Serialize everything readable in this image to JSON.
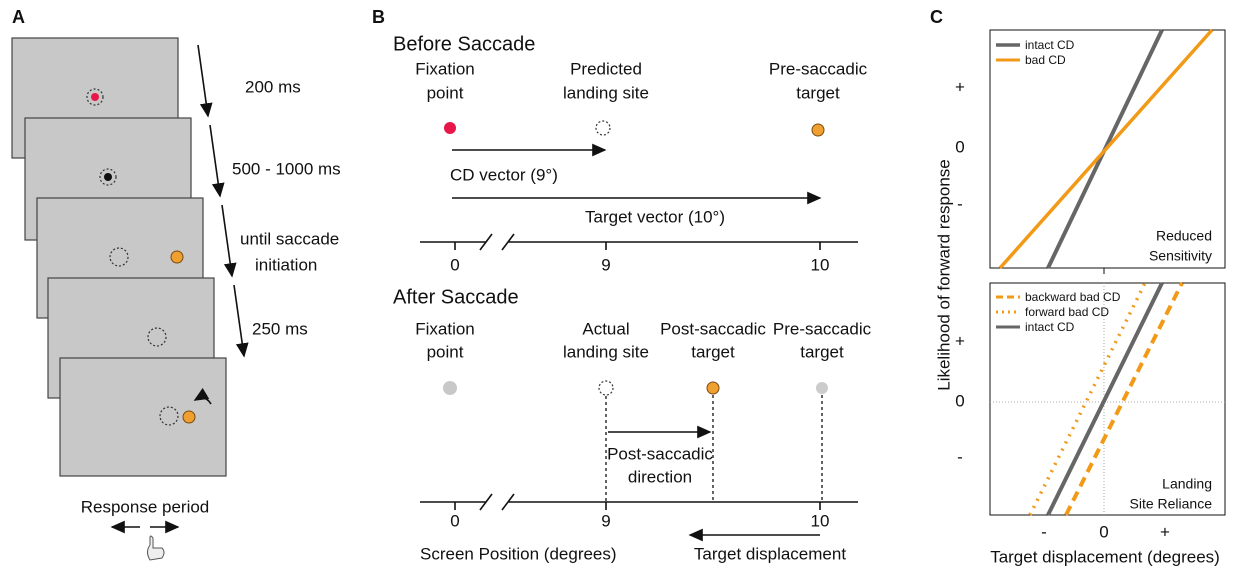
{
  "panel_a": {
    "label": "A",
    "intervals": [
      "200 ms",
      "500 - 1000 ms",
      "until saccade",
      "initiation",
      "250 ms"
    ],
    "response": "Response period"
  },
  "panel_b": {
    "label": "B",
    "before": {
      "title": "Before Saccade",
      "labels": [
        [
          "Fixation",
          "point"
        ],
        [
          "Predicted",
          "landing site"
        ],
        [
          "Pre-saccadic",
          "target"
        ]
      ],
      "cd_vector": "CD vector  (9°)",
      "target_vector": "Target vector (10°)",
      "ticks": [
        "0",
        "9",
        "10"
      ]
    },
    "after": {
      "title": "After Saccade",
      "labels": [
        [
          "Fixation",
          "point"
        ],
        [
          "Actual",
          "landing site"
        ],
        [
          "Post-saccadic",
          "target"
        ],
        [
          "Pre-saccadic",
          "target"
        ]
      ],
      "direction": [
        "Post-saccadic",
        "direction"
      ],
      "ticks": [
        "0",
        "9",
        "10"
      ],
      "x_label": "Screen Position (degrees)",
      "displacement": "Target displacement"
    }
  },
  "panel_c": {
    "label": "C",
    "y_label": "Likelihood of forward response",
    "x_label": "Target displacement (degrees)",
    "top": {
      "legend": [
        "intact CD",
        "bad CD"
      ],
      "yticks": [
        "+",
        "0",
        "-"
      ],
      "note": [
        "Reduced",
        "Sensitivity"
      ]
    },
    "bottom": {
      "legend": [
        "backward bad CD",
        "forward bad CD",
        "intact CD"
      ],
      "yticks": [
        "+",
        "0",
        "-"
      ],
      "note": [
        "Landing",
        "Site Reliance"
      ]
    },
    "xticks": [
      "-",
      "0",
      "+"
    ]
  }
}
